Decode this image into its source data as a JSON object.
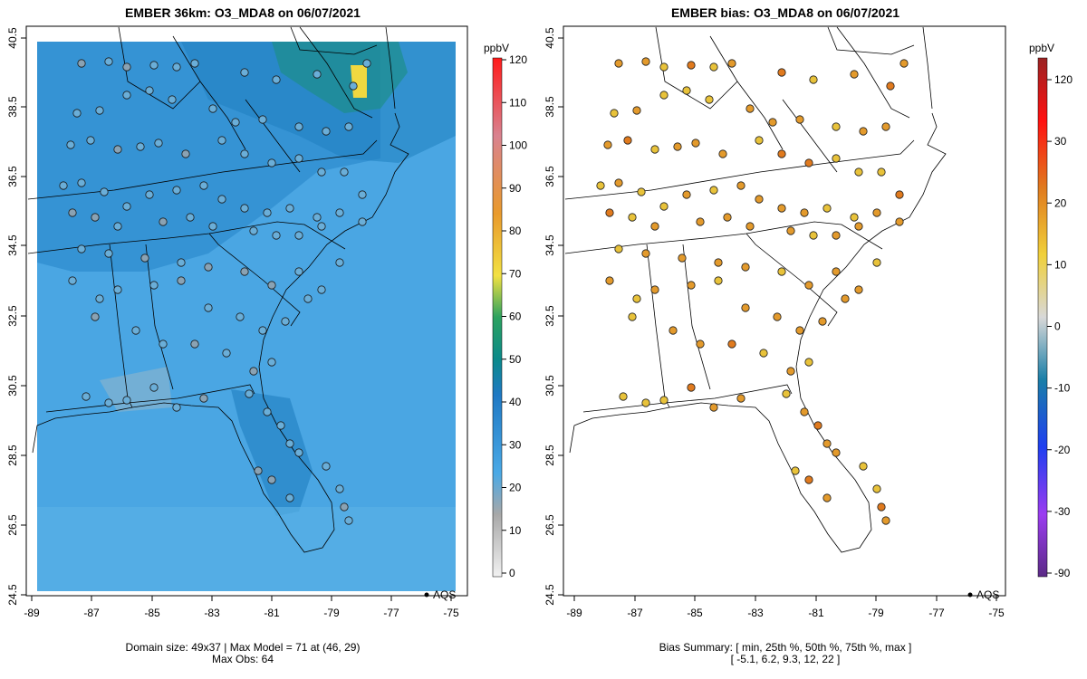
{
  "left_panel": {
    "title": "EMBER 36km: O3_MDA8 on 06/07/2021",
    "footer_line1": "Domain size: 49x37 | Max Model = 71 at (46, 29)",
    "footer_line2": "Max Obs: 64",
    "legend_unit": "ppbV",
    "legend_ticks": [
      "0",
      "10",
      "20",
      "30",
      "40",
      "50",
      "60",
      "70",
      "80",
      "90",
      "100",
      "110",
      "120"
    ],
    "aqs_label": "AQS"
  },
  "right_panel": {
    "title": "EMBER bias: O3_MDA8 on 06/07/2021",
    "footer_line1": "Bias Summary: [ min, 25th %, 50th %, 75th %, max ]",
    "footer_line2": "[ -5.1,   6.2,   9.3,   12,   22 ]",
    "legend_unit": "ppbV",
    "legend_ticks": [
      "-90",
      "-30",
      "-20",
      "-10",
      "0",
      "10",
      "20",
      "30",
      "120"
    ],
    "aqs_label": "AQS"
  },
  "axes": {
    "x_ticks": [
      "-89",
      "-87",
      "-85",
      "-83",
      "-81",
      "-79",
      "-77",
      "-75"
    ],
    "y_ticks": [
      "24.5",
      "26.5",
      "28.5",
      "30.5",
      "32.5",
      "34.5",
      "36.5",
      "38.5",
      "40.5"
    ],
    "xlim": [
      -89.2,
      -74.8
    ],
    "ylim": [
      24.5,
      40.8
    ]
  },
  "colors": {
    "model_field": "#4aa6e3",
    "model_field_dark": "#2f8ccf",
    "obs_fill": "#6aaed8",
    "bias_fill": "#e39a2c",
    "bias_fill_high": "#e8c23a"
  }
}
